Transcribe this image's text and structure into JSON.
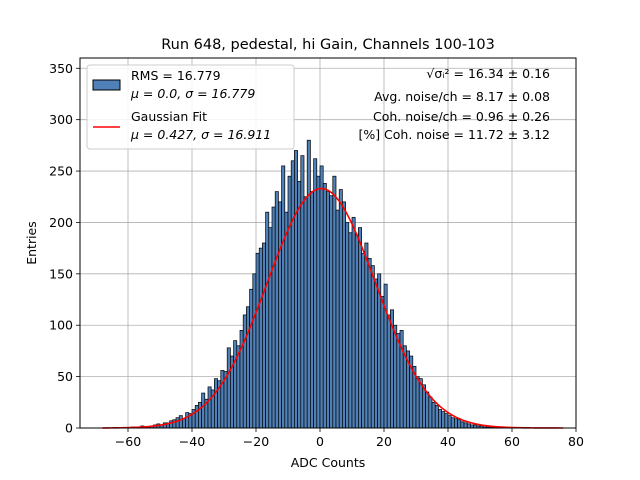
{
  "chart_data": {
    "type": "bar",
    "title": "Run 648, pedestal, hi Gain, Channels 100-103",
    "xlabel": "ADC Counts",
    "ylabel": "Entries",
    "xlim": [
      -75,
      80
    ],
    "ylim": [
      0,
      360
    ],
    "xticks": [
      -60,
      -40,
      -20,
      0,
      20,
      40,
      60,
      80
    ],
    "yticks": [
      0,
      50,
      100,
      150,
      200,
      250,
      300,
      350
    ],
    "grid": true,
    "legend_position": "top-left",
    "bin_width": 1,
    "series": [
      {
        "name": "RMS = 16.779",
        "name_line2": "μ = 0.0, σ = 16.779",
        "kind": "histogram",
        "color": "#4f81b8",
        "edge_color": "#000000",
        "bins": [
          -67,
          -66,
          -65,
          -64,
          -63,
          -62,
          -61,
          -60,
          -59,
          -58,
          -57,
          -56,
          -55,
          -54,
          -53,
          -52,
          -51,
          -50,
          -49,
          -48,
          -47,
          -46,
          -45,
          -44,
          -43,
          -42,
          -41,
          -40,
          -39,
          -38,
          -37,
          -36,
          -35,
          -34,
          -33,
          -32,
          -31,
          -30,
          -29,
          -28,
          -27,
          -26,
          -25,
          -24,
          -23,
          -22,
          -21,
          -20,
          -19,
          -18,
          -17,
          -16,
          -15,
          -14,
          -13,
          -12,
          -11,
          -10,
          -9,
          -8,
          -7,
          -6,
          -5,
          -4,
          -3,
          -2,
          -1,
          0,
          1,
          2,
          3,
          4,
          5,
          6,
          7,
          8,
          9,
          10,
          11,
          12,
          13,
          14,
          15,
          16,
          17,
          18,
          19,
          20,
          21,
          22,
          23,
          24,
          25,
          26,
          27,
          28,
          29,
          30,
          31,
          32,
          33,
          34,
          35,
          36,
          37,
          38,
          39,
          40,
          41,
          42,
          43,
          44,
          45,
          46,
          47,
          48,
          49,
          50,
          51,
          52,
          53,
          54,
          55,
          56,
          57,
          58,
          59,
          60,
          61,
          62,
          63,
          64,
          65,
          66,
          67,
          68,
          69,
          70,
          71,
          72,
          73,
          74,
          75,
          76
        ],
        "values": [
          0,
          0,
          0,
          0,
          0,
          0,
          0,
          0,
          1,
          1,
          0,
          2,
          1,
          1,
          2,
          3,
          4,
          3,
          5,
          5,
          7,
          8,
          10,
          12,
          9,
          15,
          14,
          18,
          22,
          25,
          34,
          28,
          40,
          37,
          48,
          46,
          56,
          55,
          78,
          70,
          85,
          80,
          95,
          110,
          118,
          135,
          150,
          170,
          175,
          180,
          210,
          195,
          215,
          230,
          220,
          255,
          210,
          245,
          260,
          270,
          240,
          265,
          225,
          280,
          230,
          262,
          245,
          255,
          238,
          230,
          226,
          245,
          212,
          232,
          220,
          200,
          190,
          205,
          188,
          195,
          170,
          180,
          165,
          158,
          145,
          150,
          128,
          140,
          110,
          115,
          100,
          92,
          95,
          80,
          75,
          70,
          60,
          50,
          48,
          42,
          35,
          30,
          25,
          22,
          18,
          16,
          14,
          12,
          10,
          9,
          8,
          6,
          5,
          4,
          3,
          3,
          2,
          2,
          1,
          1,
          1,
          1,
          0,
          1,
          0,
          0,
          0,
          0,
          0,
          0,
          0,
          0,
          0,
          0,
          0,
          0,
          0,
          0,
          0,
          0,
          0,
          0,
          0,
          0
        ]
      },
      {
        "name": "Gaussian Fit",
        "name_line2": "μ = 0.427, σ = 16.911",
        "kind": "line",
        "color": "#ff0000",
        "mu": 0.427,
        "sigma": 16.911,
        "amplitude": 233,
        "x_range": [
          -68,
          76
        ]
      }
    ],
    "annotations": [
      {
        "label": "√σᵢ²",
        "text": " = 16.34 ± 0.16"
      },
      {
        "text": "Avg. noise/ch = 8.17 ± 0.08"
      },
      {
        "text": "Coh. noise/ch = 0.96 ± 0.26"
      },
      {
        "text": "[%] Coh. noise = 11.72 ± 3.12"
      }
    ]
  }
}
